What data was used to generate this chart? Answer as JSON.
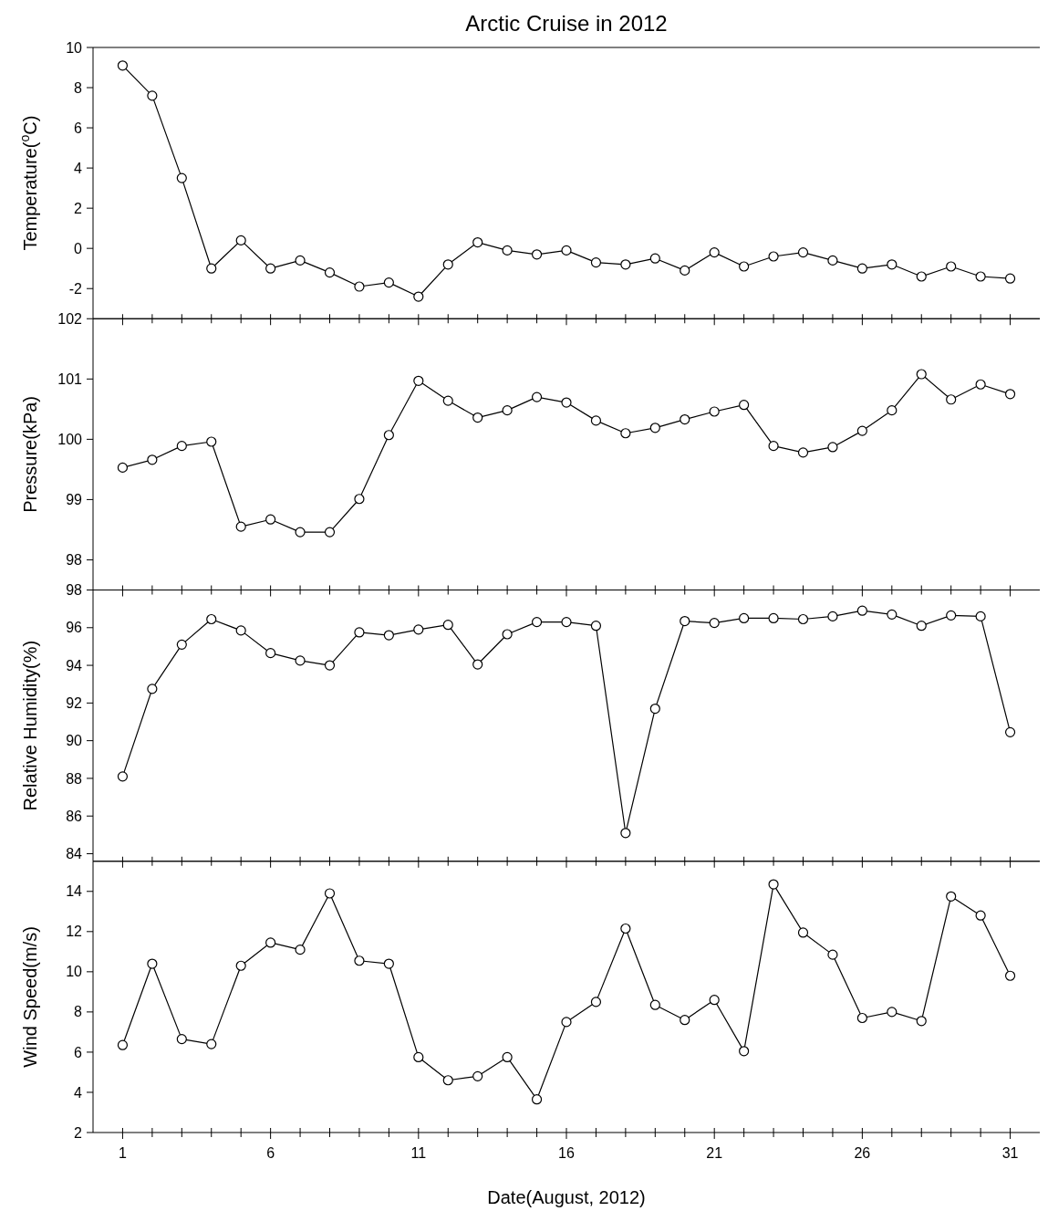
{
  "chart_data": [
    {
      "type": "line",
      "title": "Arctic Cruise in 2012",
      "ylabel": "Temperature($^{o}$C)",
      "x": [
        1,
        2,
        3,
        4,
        5,
        6,
        7,
        8,
        9,
        10,
        11,
        12,
        13,
        14,
        15,
        16,
        17,
        18,
        19,
        20,
        21,
        22,
        23,
        24,
        25,
        26,
        27,
        28,
        29,
        30,
        31
      ],
      "series": [
        {
          "color": "#000000",
          "values": [
            9.1,
            7.6,
            3.5,
            -1.0,
            0.4,
            -1.0,
            -0.6,
            -1.2,
            -1.9,
            -1.7,
            -2.4,
            -0.8,
            0.3,
            -0.1,
            -0.3,
            -0.1,
            -0.7,
            -0.8,
            -0.5,
            -1.1,
            -0.2,
            -0.9,
            -0.4,
            -0.2,
            -0.6,
            -1.0,
            -0.8,
            -1.4,
            -0.9,
            -1.4,
            -1.5
          ]
        }
      ],
      "xlim": [
        0,
        32
      ],
      "ylim": [
        -3.5,
        10
      ],
      "yticks": [
        -2,
        0,
        2,
        4,
        6,
        8,
        10
      ],
      "xticks": [
        1,
        {
          "value": 2,
          "label": null
        },
        {
          "value": 3,
          "label": null
        },
        {
          "value": 4,
          "label": null
        },
        {
          "value": 5,
          "label": null
        },
        6,
        {
          "value": 7,
          "label": null
        },
        {
          "value": 8,
          "label": null
        },
        {
          "value": 9,
          "label": null
        },
        {
          "value": 10,
          "label": null
        },
        11,
        {
          "value": 12,
          "label": null
        },
        {
          "value": 13,
          "label": null
        },
        {
          "value": 14,
          "label": null
        },
        {
          "value": 15,
          "label": null
        },
        16,
        {
          "value": 17,
          "label": null
        },
        {
          "value": 18,
          "label": null
        },
        {
          "value": 19,
          "label": null
        },
        {
          "value": 20,
          "label": null
        },
        21,
        {
          "value": 22,
          "label": null
        },
        {
          "value": 23,
          "label": null
        },
        {
          "value": 24,
          "label": null
        },
        {
          "value": 25,
          "label": null
        },
        26,
        {
          "value": 27,
          "label": null
        },
        {
          "value": 28,
          "label": null
        },
        {
          "value": 29,
          "label": null
        },
        {
          "value": 30,
          "label": null
        },
        31
      ],
      "tick_labels": "y",
      "marker": "circle"
    },
    {
      "type": "line",
      "ylabel": "Pressure(kPa)",
      "x": [
        1,
        2,
        3,
        4,
        5,
        6,
        7,
        8,
        9,
        10,
        11,
        12,
        13,
        14,
        15,
        16,
        17,
        18,
        19,
        20,
        21,
        22,
        23,
        24,
        25,
        26,
        27,
        28,
        29,
        30,
        31
      ],
      "series": [
        {
          "color": "#000000",
          "values": [
            99.53,
            99.66,
            99.89,
            99.96,
            98.55,
            98.67,
            98.46,
            98.46,
            99.01,
            100.07,
            100.97,
            100.64,
            100.36,
            100.48,
            100.7,
            100.61,
            100.31,
            100.1,
            100.19,
            100.33,
            100.46,
            100.57,
            99.89,
            99.78,
            99.87,
            100.14,
            100.48,
            101.08,
            100.66,
            100.91,
            100.75
          ]
        }
      ],
      "xlim": [
        0,
        32
      ],
      "ylim": [
        97.5,
        102
      ],
      "yticks": [
        98,
        99,
        100,
        101,
        102
      ],
      "xticks": [
        1,
        {
          "value": 2,
          "label": null
        },
        {
          "value": 3,
          "label": null
        },
        {
          "value": 4,
          "label": null
        },
        {
          "value": 5,
          "label": null
        },
        6,
        {
          "value": 7,
          "label": null
        },
        {
          "value": 8,
          "label": null
        },
        {
          "value": 9,
          "label": null
        },
        {
          "value": 10,
          "label": null
        },
        11,
        {
          "value": 12,
          "label": null
        },
        {
          "value": 13,
          "label": null
        },
        {
          "value": 14,
          "label": null
        },
        {
          "value": 15,
          "label": null
        },
        16,
        {
          "value": 17,
          "label": null
        },
        {
          "value": 18,
          "label": null
        },
        {
          "value": 19,
          "label": null
        },
        {
          "value": 20,
          "label": null
        },
        21,
        {
          "value": 22,
          "label": null
        },
        {
          "value": 23,
          "label": null
        },
        {
          "value": 24,
          "label": null
        },
        {
          "value": 25,
          "label": null
        },
        26,
        {
          "value": 27,
          "label": null
        },
        {
          "value": 28,
          "label": null
        },
        {
          "value": 29,
          "label": null
        },
        {
          "value": 30,
          "label": null
        },
        31
      ],
      "tick_labels": "y",
      "marker": "circle"
    },
    {
      "type": "line",
      "ylabel": "Relative Humidity(%)",
      "x": [
        1,
        2,
        3,
        4,
        5,
        6,
        7,
        8,
        9,
        10,
        11,
        12,
        13,
        14,
        15,
        16,
        17,
        18,
        19,
        20,
        21,
        22,
        23,
        24,
        25,
        26,
        27,
        28,
        29,
        30,
        31
      ],
      "series": [
        {
          "color": "#000000",
          "values": [
            88.1,
            92.75,
            95.1,
            96.45,
            95.85,
            94.65,
            94.25,
            94.0,
            95.75,
            95.6,
            95.9,
            96.15,
            94.05,
            95.65,
            96.3,
            96.3,
            96.1,
            85.1,
            91.7,
            96.35,
            96.25,
            96.5,
            96.5,
            96.45,
            96.6,
            96.9,
            96.7,
            96.1,
            96.65,
            96.6,
            90.45
          ]
        }
      ],
      "xlim": [
        0,
        32
      ],
      "ylim": [
        83.6,
        98
      ],
      "yticks": [
        84,
        86,
        88,
        90,
        92,
        94,
        96,
        98
      ],
      "xticks": [
        1,
        {
          "value": 2,
          "label": null
        },
        {
          "value": 3,
          "label": null
        },
        {
          "value": 4,
          "label": null
        },
        {
          "value": 5,
          "label": null
        },
        6,
        {
          "value": 7,
          "label": null
        },
        {
          "value": 8,
          "label": null
        },
        {
          "value": 9,
          "label": null
        },
        {
          "value": 10,
          "label": null
        },
        11,
        {
          "value": 12,
          "label": null
        },
        {
          "value": 13,
          "label": null
        },
        {
          "value": 14,
          "label": null
        },
        {
          "value": 15,
          "label": null
        },
        16,
        {
          "value": 17,
          "label": null
        },
        {
          "value": 18,
          "label": null
        },
        {
          "value": 19,
          "label": null
        },
        {
          "value": 20,
          "label": null
        },
        21,
        {
          "value": 22,
          "label": null
        },
        {
          "value": 23,
          "label": null
        },
        {
          "value": 24,
          "label": null
        },
        {
          "value": 25,
          "label": null
        },
        26,
        {
          "value": 27,
          "label": null
        },
        {
          "value": 28,
          "label": null
        },
        {
          "value": 29,
          "label": null
        },
        {
          "value": 30,
          "label": null
        },
        31
      ],
      "tick_labels": "y",
      "marker": "circle"
    },
    {
      "type": "line",
      "ylabel": "Wind Speed(m/s)",
      "xlabel": "Date(August, 2012)",
      "x": [
        1,
        2,
        3,
        4,
        5,
        6,
        7,
        8,
        9,
        10,
        11,
        12,
        13,
        14,
        15,
        16,
        17,
        18,
        19,
        20,
        21,
        22,
        23,
        24,
        25,
        26,
        27,
        28,
        29,
        30,
        31
      ],
      "series": [
        {
          "color": "#000000",
          "values": [
            6.35,
            10.4,
            6.65,
            6.4,
            10.3,
            11.45,
            11.1,
            13.9,
            10.55,
            10.4,
            5.75,
            4.6,
            4.8,
            5.75,
            3.65,
            7.5,
            8.5,
            12.15,
            8.35,
            7.6,
            8.6,
            6.05,
            14.35,
            11.95,
            10.85,
            7.7,
            8.0,
            7.55,
            13.75,
            12.8,
            9.8
          ]
        }
      ],
      "xlim": [
        0,
        32
      ],
      "ylim": [
        2,
        15.5
      ],
      "yticks": [
        2,
        4,
        6,
        8,
        10,
        12,
        14
      ],
      "xticks": [
        1,
        {
          "value": 2,
          "label": null
        },
        {
          "value": 3,
          "label": null
        },
        {
          "value": 4,
          "label": null
        },
        {
          "value": 5,
          "label": null
        },
        6,
        {
          "value": 7,
          "label": null
        },
        {
          "value": 8,
          "label": null
        },
        {
          "value": 9,
          "label": null
        },
        {
          "value": 10,
          "label": null
        },
        11,
        {
          "value": 12,
          "label": null
        },
        {
          "value": 13,
          "label": null
        },
        {
          "value": 14,
          "label": null
        },
        {
          "value": 15,
          "label": null
        },
        16,
        {
          "value": 17,
          "label": null
        },
        {
          "value": 18,
          "label": null
        },
        {
          "value": 19,
          "label": null
        },
        {
          "value": 20,
          "label": null
        },
        21,
        {
          "value": 22,
          "label": null
        },
        {
          "value": 23,
          "label": null
        },
        {
          "value": 24,
          "label": null
        },
        {
          "value": 25,
          "label": null
        },
        26,
        {
          "value": 27,
          "label": null
        },
        {
          "value": 28,
          "label": null
        },
        {
          "value": 29,
          "label": null
        },
        {
          "value": 30,
          "label": null
        },
        31
      ],
      "marker": "circle"
    }
  ]
}
